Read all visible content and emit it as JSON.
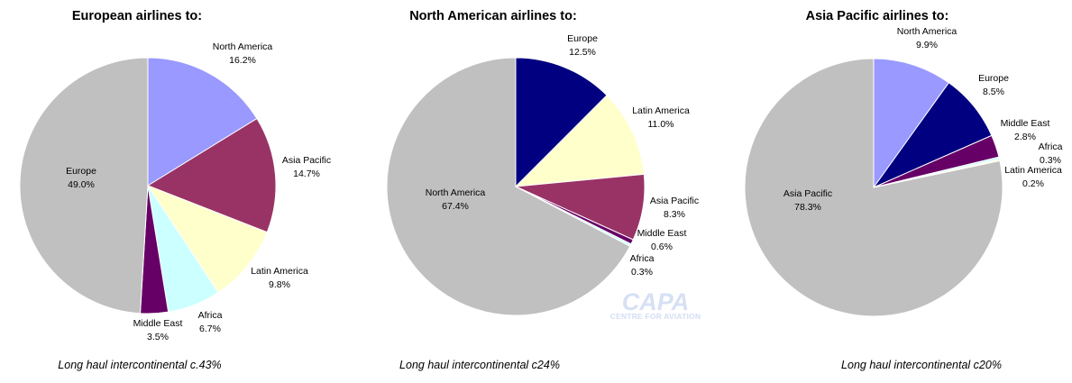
{
  "watermark": {
    "logo": "CAPA",
    "tagline": "CENTRE FOR AVIATION"
  },
  "chart_data": [
    {
      "type": "pie",
      "title": "European airlines to:",
      "caption": "Long haul intercontinental c.43%",
      "slices": [
        {
          "label": "North America",
          "value": 16.2,
          "value_label": "16.2%",
          "color": "#9999ff"
        },
        {
          "label": "Asia Pacific",
          "value": 14.7,
          "value_label": "14.7%",
          "color": "#993366"
        },
        {
          "label": "Latin America",
          "value": 9.8,
          "value_label": "9.8%",
          "color": "#ffffcc"
        },
        {
          "label": "Africa",
          "value": 6.7,
          "value_label": "6.7%",
          "color": "#ccffff"
        },
        {
          "label": "Middle East",
          "value": 3.5,
          "value_label": "3.5%",
          "color": "#660066"
        },
        {
          "label": "Europe",
          "value": 49.0,
          "value_label": "49.0%",
          "color": "#c0c0c0"
        }
      ]
    },
    {
      "type": "pie",
      "title": "North American airlines to:",
      "caption": "Long haul intercontinental c24%",
      "slices": [
        {
          "label": "Europe",
          "value": 12.5,
          "value_label": "12.5%",
          "color": "#000080"
        },
        {
          "label": "Latin America",
          "value": 11.0,
          "value_label": "11.0%",
          "color": "#ffffcc"
        },
        {
          "label": "Asia Pacific",
          "value": 8.3,
          "value_label": "8.3%",
          "color": "#993366"
        },
        {
          "label": "Middle East",
          "value": 0.6,
          "value_label": "0.6%",
          "color": "#660066"
        },
        {
          "label": "Africa",
          "value": 0.3,
          "value_label": "0.3%",
          "color": "#ccffff"
        },
        {
          "label": "North America",
          "value": 67.4,
          "value_label": "67.4%",
          "color": "#c0c0c0"
        }
      ]
    },
    {
      "type": "pie",
      "title": "Asia Pacific airlines to:",
      "caption": "Long haul intercontinental c20%",
      "slices": [
        {
          "label": "North America",
          "value": 9.9,
          "value_label": "9.9%",
          "color": "#9999ff"
        },
        {
          "label": "Europe",
          "value": 8.5,
          "value_label": "8.5%",
          "color": "#000080"
        },
        {
          "label": "Middle East",
          "value": 2.8,
          "value_label": "2.8%",
          "color": "#660066"
        },
        {
          "label": "Africa",
          "value": 0.3,
          "value_label": "0.3%",
          "color": "#ccffff"
        },
        {
          "label": "Latin America",
          "value": 0.2,
          "value_label": "0.2%",
          "color": "#ffffcc"
        },
        {
          "label": "Asia Pacific",
          "value": 78.3,
          "value_label": "78.3%",
          "color": "#c0c0c0"
        }
      ]
    }
  ]
}
